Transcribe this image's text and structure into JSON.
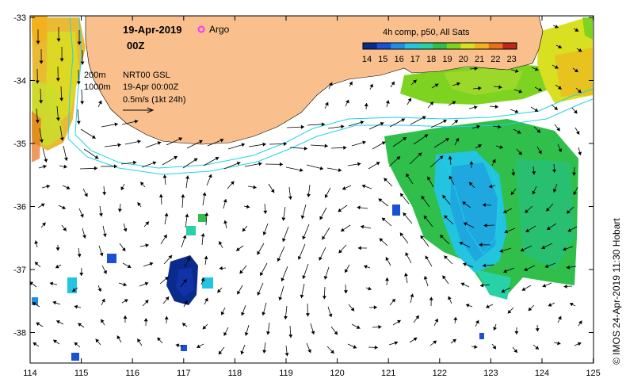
{
  "map": {
    "date": "19-Apr-2019",
    "time": "00Z",
    "argo_label": "Argo",
    "legend_title": "4h comp, p50, All Sats",
    "colorbar_ticks": [
      "14",
      "15",
      "16",
      "17",
      "18",
      "19",
      "20",
      "21",
      "22",
      "23"
    ],
    "depth_200": "200m",
    "depth_1000": "1000m",
    "product": "NRT00 GSL",
    "product_time": "19-Apr 00:00Z",
    "scale_label": "0.5m/s (1kt 24h)",
    "credit": "© IMOS 24-Apr-2019 11:30 Hobart",
    "x_ticks": [
      "114",
      "115",
      "116",
      "117",
      "118",
      "119",
      "120",
      "121",
      "122",
      "123",
      "124",
      "125"
    ],
    "y_ticks": [
      "-33",
      "-34",
      "-35",
      "-36",
      "-37",
      "-38"
    ],
    "colors": {
      "land": "#f9c08e",
      "isobath": "#22d3e6",
      "argo": "#ff33ff",
      "colorbar": [
        "#0a2a8c",
        "#1a4fd6",
        "#1f8fe6",
        "#22c4e0",
        "#28d2a6",
        "#2fbf4a",
        "#7ed321",
        "#d9e021",
        "#f2b21e",
        "#e8711a",
        "#c0261c"
      ]
    }
  }
}
